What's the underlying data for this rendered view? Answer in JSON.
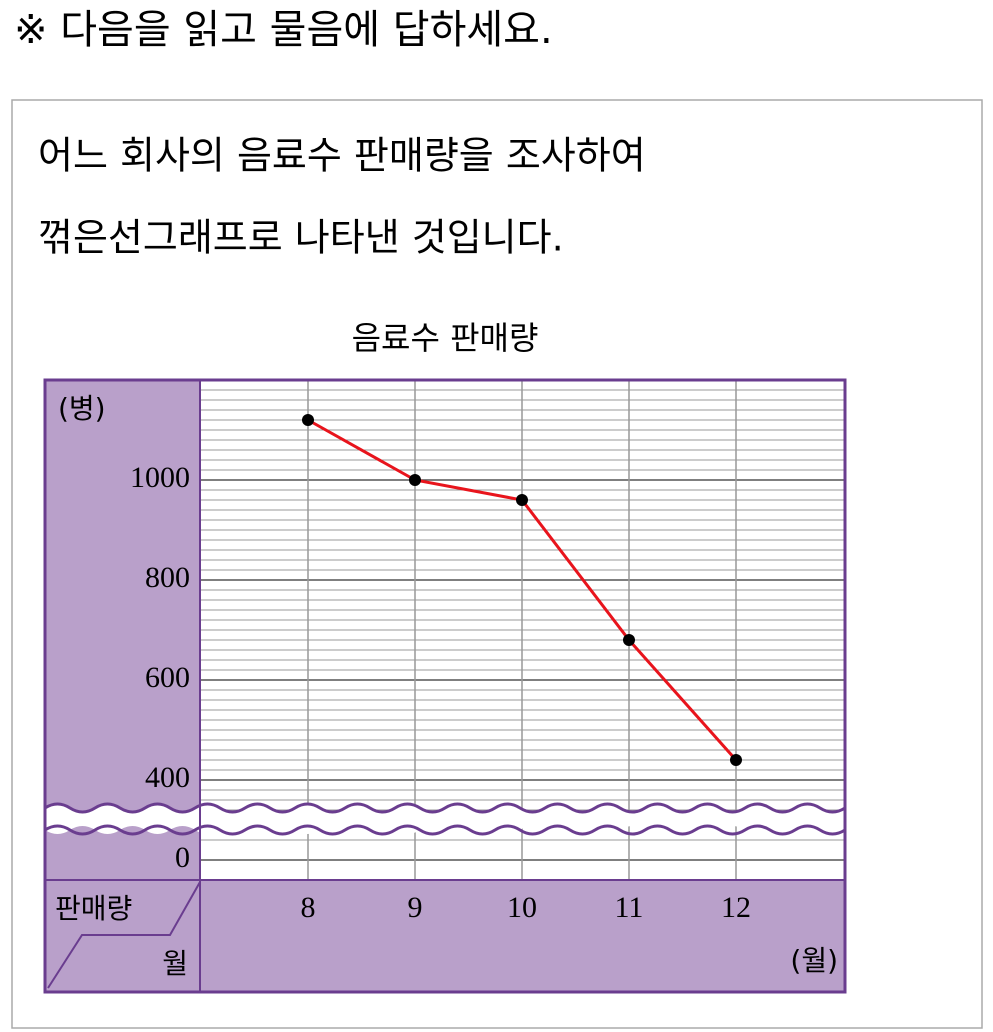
{
  "header": "※ 다음을 읽고 물음에 답하세요.",
  "passage": [
    "어느 회사의 음료수 판매량을 조사하여",
    "꺾은선그래프로 나타낸 것입니다."
  ],
  "chart_data": {
    "type": "line",
    "title": "음료수 판매량",
    "y_unit": "(병)",
    "x_unit": "(월)",
    "corner_value_label": "판매량",
    "corner_category_label": "월",
    "categories": [
      "8",
      "9",
      "10",
      "11",
      "12"
    ],
    "values": [
      1120,
      1000,
      960,
      680,
      440
    ],
    "color": "#e8141c",
    "ylim": [
      0,
      1200
    ],
    "yticks": [
      0,
      400,
      600,
      800,
      1000
    ],
    "axis_break": true,
    "grid": true
  }
}
